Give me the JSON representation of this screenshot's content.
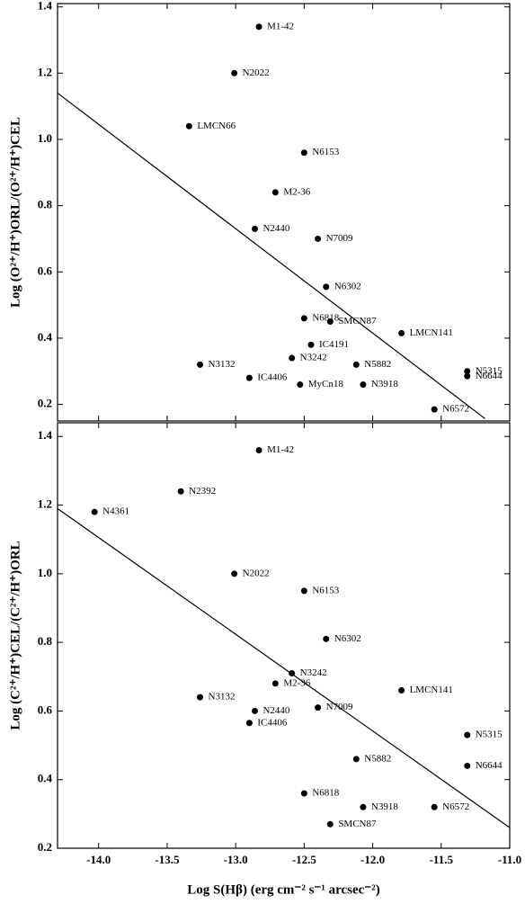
{
  "chart_data": [
    {
      "type": "scatter",
      "y_label": "Log (O²⁺/H⁺)ORL/(O²⁺/H⁺)CEL",
      "color": "#000000",
      "labels": [
        "M1-42",
        "N2022",
        "LMCN66",
        "N6153",
        "M2-36",
        "N2440",
        "N7009",
        "N6302",
        "N6818",
        "SMCN87",
        "LMCN141",
        "IC4191",
        "N3242",
        "N3132",
        "N5882",
        "IC4406",
        "MyCn18",
        "N3918",
        "N5315",
        "N6644",
        "N6572"
      ],
      "x": [
        -12.83,
        -13.01,
        -13.34,
        -12.5,
        -12.71,
        -12.86,
        -12.4,
        -12.34,
        -12.5,
        -12.31,
        -11.79,
        -12.45,
        -12.59,
        -13.26,
        -12.12,
        -12.9,
        -12.53,
        -12.07,
        -11.31,
        -11.31,
        -11.55
      ],
      "y": [
        1.34,
        1.2,
        1.04,
        0.96,
        0.84,
        0.73,
        0.7,
        0.555,
        0.46,
        0.45,
        0.415,
        0.38,
        0.34,
        0.32,
        0.32,
        0.28,
        0.26,
        0.26,
        0.3,
        0.285,
        0.185
      ],
      "fit": {
        "x": [
          -14.3,
          -11.18
        ],
        "y": [
          1.14,
          0.157
        ]
      },
      "xlim": [
        -14.3,
        -11.0
      ],
      "xticks": [
        {
          "value": -14,
          "label": "-14.0"
        },
        {
          "value": -13.5,
          "label": "-13.5"
        },
        {
          "value": -13,
          "label": "-13.0"
        },
        {
          "value": -12.5,
          "label": "-12.5"
        },
        {
          "value": -12,
          "label": "-12.0"
        },
        {
          "value": -11.5,
          "label": "-11.5"
        },
        {
          "value": -11,
          "label": "-11.0"
        }
      ],
      "ylim": [
        0.15,
        1.41
      ],
      "yticks": [
        0.2,
        0.4,
        0.6,
        0.8,
        {
          "value": 1,
          "label": "1.0"
        },
        1.2,
        1.4
      ]
    },
    {
      "type": "scatter",
      "y_label": "Log (C²⁺/H⁺)CEL/(C²⁺/H⁺)ORL",
      "x_label": "Log S(Hβ)  (erg cm⁻² s⁻¹ arcsec⁻²)",
      "color": "#000000",
      "labels": [
        "M1-42",
        "N2392",
        "N4361",
        "N2022",
        "N6153",
        "N6302",
        "N3242",
        "M2-36",
        "LMCN141",
        "N3132",
        "N2440",
        "N7009",
        "IC4406",
        "N5315",
        "N5882",
        "N6644",
        "N6818",
        "N3918",
        "N6572",
        "SMCN87"
      ],
      "x": [
        -12.83,
        -13.4,
        -14.03,
        -13.01,
        -12.5,
        -12.34,
        -12.59,
        -12.71,
        -11.79,
        -13.26,
        -12.86,
        -12.4,
        -12.9,
        -11.31,
        -12.12,
        -11.31,
        -12.5,
        -12.07,
        -11.55,
        -12.31
      ],
      "y": [
        1.36,
        1.24,
        1.18,
        1.0,
        0.95,
        0.81,
        0.71,
        0.68,
        0.66,
        0.64,
        0.6,
        0.61,
        0.565,
        0.53,
        0.46,
        0.44,
        0.36,
        0.32,
        0.32,
        0.27
      ],
      "fit": {
        "x": [
          -14.3,
          -11.0
        ],
        "y": [
          1.19,
          0.26
        ]
      },
      "xlim": [
        -14.3,
        -11.0
      ],
      "xticks": [
        {
          "value": -14,
          "label": "-14.0"
        },
        {
          "value": -13.5,
          "label": "-13.5"
        },
        {
          "value": -13,
          "label": "-13.0"
        },
        {
          "value": -12.5,
          "label": "-12.5"
        },
        {
          "value": -12,
          "label": "-12.0"
        },
        {
          "value": -11.5,
          "label": "-11.5"
        },
        {
          "value": -11,
          "label": "-11.0"
        }
      ],
      "ylim": [
        0.2,
        1.44
      ],
      "yticks": [
        0.2,
        0.4,
        0.6,
        0.8,
        {
          "value": 1,
          "label": "1.0"
        },
        1.2,
        1.4
      ]
    }
  ]
}
